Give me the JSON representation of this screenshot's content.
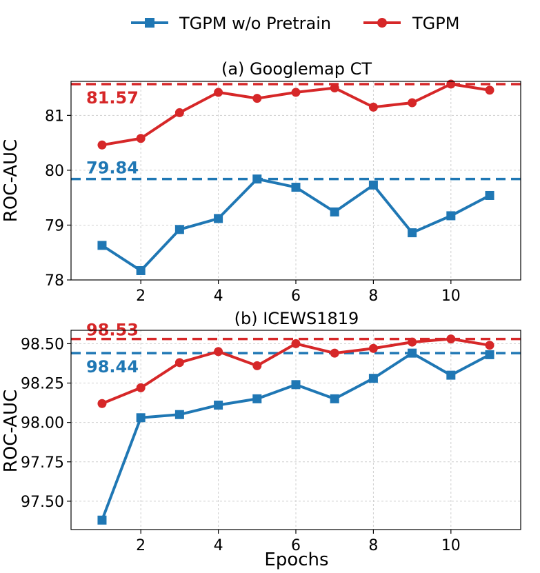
{
  "legend": [
    {
      "name": "TGPM w/o Pretrain",
      "color": "#1f77b4",
      "marker": "square"
    },
    {
      "name": "TGPM",
      "color": "#d62728",
      "marker": "circle"
    }
  ],
  "chart_data": [
    {
      "type": "line",
      "title": "(a) Googlemap CT",
      "xlabel": "",
      "ylabel": "ROC-AUC",
      "x": [
        1,
        2,
        3,
        4,
        5,
        6,
        7,
        8,
        9,
        10,
        11
      ],
      "xlim": [
        0.2,
        11.8
      ],
      "ylim": [
        78,
        81.62
      ],
      "xticks": [
        2,
        4,
        6,
        8,
        10
      ],
      "yticks": [
        78,
        79,
        80,
        81
      ],
      "ytick_labels": [
        "78",
        "79",
        "80",
        "81"
      ],
      "series": [
        {
          "name": "TGPM w/o Pretrain",
          "color": "#1f77b4",
          "marker": "square",
          "values": [
            78.63,
            78.17,
            78.92,
            79.12,
            79.84,
            79.69,
            79.24,
            79.73,
            78.86,
            79.17,
            79.54
          ],
          "ref": 79.84,
          "ref_label": "79.84"
        },
        {
          "name": "TGPM",
          "color": "#d62728",
          "marker": "circle",
          "values": [
            80.46,
            80.58,
            81.05,
            81.42,
            81.31,
            81.42,
            81.5,
            81.15,
            81.23,
            81.57,
            81.46
          ],
          "ref": 81.57,
          "ref_label": "81.57"
        }
      ]
    },
    {
      "type": "line",
      "title": "(b) ICEWS1819",
      "xlabel": "Epochs",
      "ylabel": "ROC-AUC",
      "x": [
        1,
        2,
        3,
        4,
        5,
        6,
        7,
        8,
        9,
        10,
        11
      ],
      "xlim": [
        0.2,
        11.8
      ],
      "ylim": [
        97.32,
        98.585
      ],
      "xticks": [
        2,
        4,
        6,
        8,
        10
      ],
      "yticks": [
        97.5,
        97.75,
        98.0,
        98.25,
        98.5
      ],
      "ytick_labels": [
        "97.50",
        "97.75",
        "98.00",
        "98.25",
        "98.50"
      ],
      "series": [
        {
          "name": "TGPM w/o Pretrain",
          "color": "#1f77b4",
          "marker": "square",
          "values": [
            97.38,
            98.03,
            98.05,
            98.11,
            98.15,
            98.24,
            98.15,
            98.28,
            98.44,
            98.3,
            98.43
          ],
          "ref": 98.44,
          "ref_label": "98.44"
        },
        {
          "name": "TGPM",
          "color": "#d62728",
          "marker": "circle",
          "values": [
            98.12,
            98.22,
            98.38,
            98.45,
            98.36,
            98.5,
            98.44,
            98.47,
            98.51,
            98.53,
            98.49
          ],
          "ref": 98.53,
          "ref_label": "98.53"
        }
      ]
    }
  ]
}
